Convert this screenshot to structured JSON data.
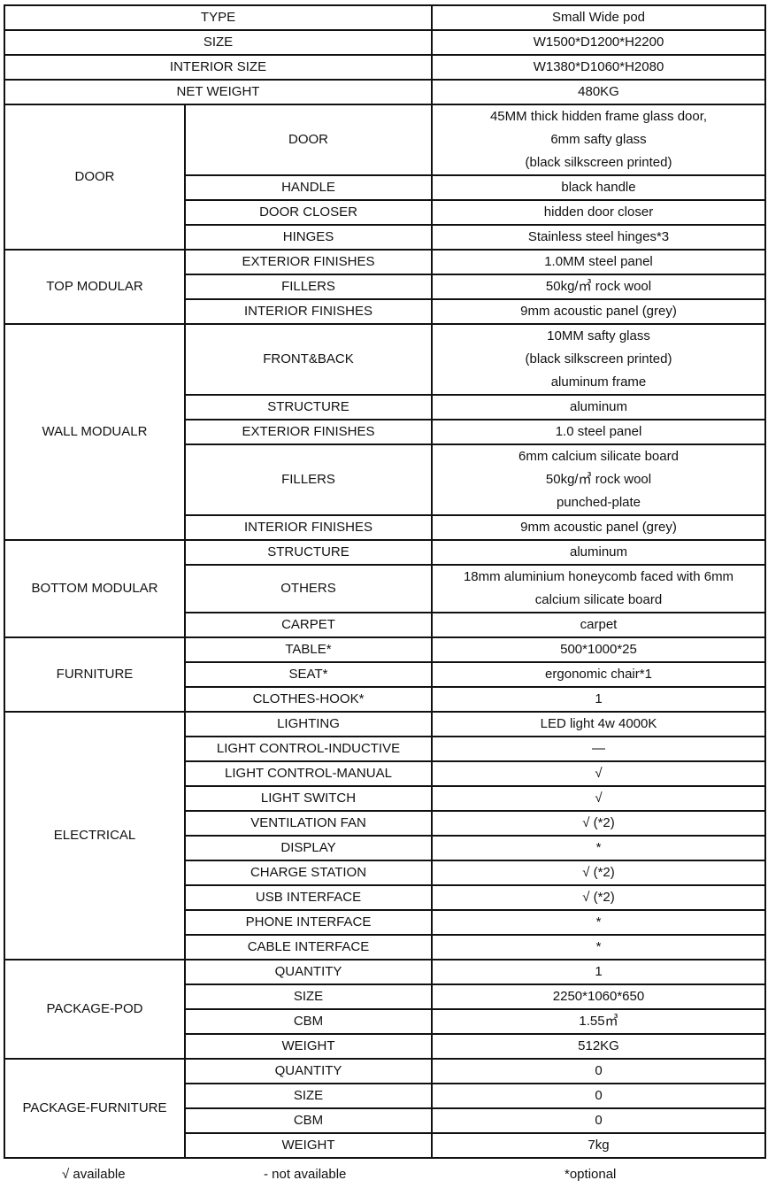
{
  "top_rows": [
    {
      "label": "TYPE",
      "value": "Small Wide pod"
    },
    {
      "label": "SIZE",
      "value": "W1500*D1200*H2200"
    },
    {
      "label": "INTERIOR SIZE",
      "value": "W1380*D1060*H2080"
    },
    {
      "label": "NET WEIGHT",
      "value": "480KG"
    }
  ],
  "groups": [
    {
      "name": "DOOR",
      "items": [
        {
          "label": "DOOR",
          "value": "45MM thick hidden frame glass door,\n6mm safty glass\n(black silkscreen printed)"
        },
        {
          "label": "HANDLE",
          "value": "black handle"
        },
        {
          "label": "DOOR CLOSER",
          "value": "hidden door closer"
        },
        {
          "label": "HINGES",
          "value": "Stainless steel hinges*3"
        }
      ]
    },
    {
      "name": "TOP MODULAR",
      "items": [
        {
          "label": "EXTERIOR FINISHES",
          "value": "1.0MM steel panel"
        },
        {
          "label": "FILLERS",
          "value": "50kg/㎥ rock wool"
        },
        {
          "label": "INTERIOR FINISHES",
          "value": "9mm acoustic panel (grey)"
        }
      ]
    },
    {
      "name": "WALL MODUALR",
      "items": [
        {
          "label": "FRONT&BACK",
          "value": "10MM safty glass\n(black silkscreen printed)\naluminum frame"
        },
        {
          "label": "STRUCTURE",
          "value": "aluminum"
        },
        {
          "label": "EXTERIOR FINISHES",
          "value": "1.0 steel panel"
        },
        {
          "label": "FILLERS",
          "value": "6mm calcium silicate board\n50kg/㎥ rock wool\npunched-plate"
        },
        {
          "label": "INTERIOR FINISHES",
          "value": "9mm acoustic panel (grey)"
        }
      ]
    },
    {
      "name": "BOTTOM MODULAR",
      "items": [
        {
          "label": "STRUCTURE",
          "value": "aluminum"
        },
        {
          "label": "OTHERS",
          "value": "18mm aluminium honeycomb faced with 6mm\ncalcium silicate board"
        },
        {
          "label": "CARPET",
          "value": "carpet"
        }
      ]
    },
    {
      "name": "FURNITURE",
      "items": [
        {
          "label": "TABLE*",
          "value": "500*1000*25"
        },
        {
          "label": "SEAT*",
          "value": "ergonomic chair*1"
        },
        {
          "label": "CLOTHES-HOOK*",
          "value": "1"
        }
      ]
    },
    {
      "name": "ELECTRICAL",
      "items": [
        {
          "label": "LIGHTING",
          "value": "LED light 4w 4000K"
        },
        {
          "label": "LIGHT CONTROL-INDUCTIVE",
          "value": "—"
        },
        {
          "label": "LIGHT CONTROL-MANUAL",
          "value": "√"
        },
        {
          "label": "LIGHT SWITCH",
          "value": "√"
        },
        {
          "label": "VENTILATION FAN",
          "value": "√  (*2)"
        },
        {
          "label": "DISPLAY",
          "value": "*"
        },
        {
          "label": "CHARGE STATION",
          "value": "√  (*2)"
        },
        {
          "label": "USB INTERFACE",
          "value": "√  (*2)"
        },
        {
          "label": "PHONE INTERFACE",
          "value": "*"
        },
        {
          "label": "CABLE INTERFACE",
          "value": "*"
        }
      ]
    },
    {
      "name": "PACKAGE-POD",
      "items": [
        {
          "label": "QUANTITY",
          "value": "1"
        },
        {
          "label": "SIZE",
          "value": "2250*1060*650"
        },
        {
          "label": "CBM",
          "value": "1.55㎥"
        },
        {
          "label": "WEIGHT",
          "value": "512KG"
        }
      ]
    },
    {
      "name": "PACKAGE-FURNITURE",
      "items": [
        {
          "label": "QUANTITY",
          "value": "0"
        },
        {
          "label": "SIZE",
          "value": "0"
        },
        {
          "label": "CBM",
          "value": "0"
        },
        {
          "label": "WEIGHT",
          "value": "7kg"
        }
      ]
    }
  ],
  "legend": {
    "available": "√ available",
    "not_available": "- not available",
    "optional": "*optional"
  }
}
